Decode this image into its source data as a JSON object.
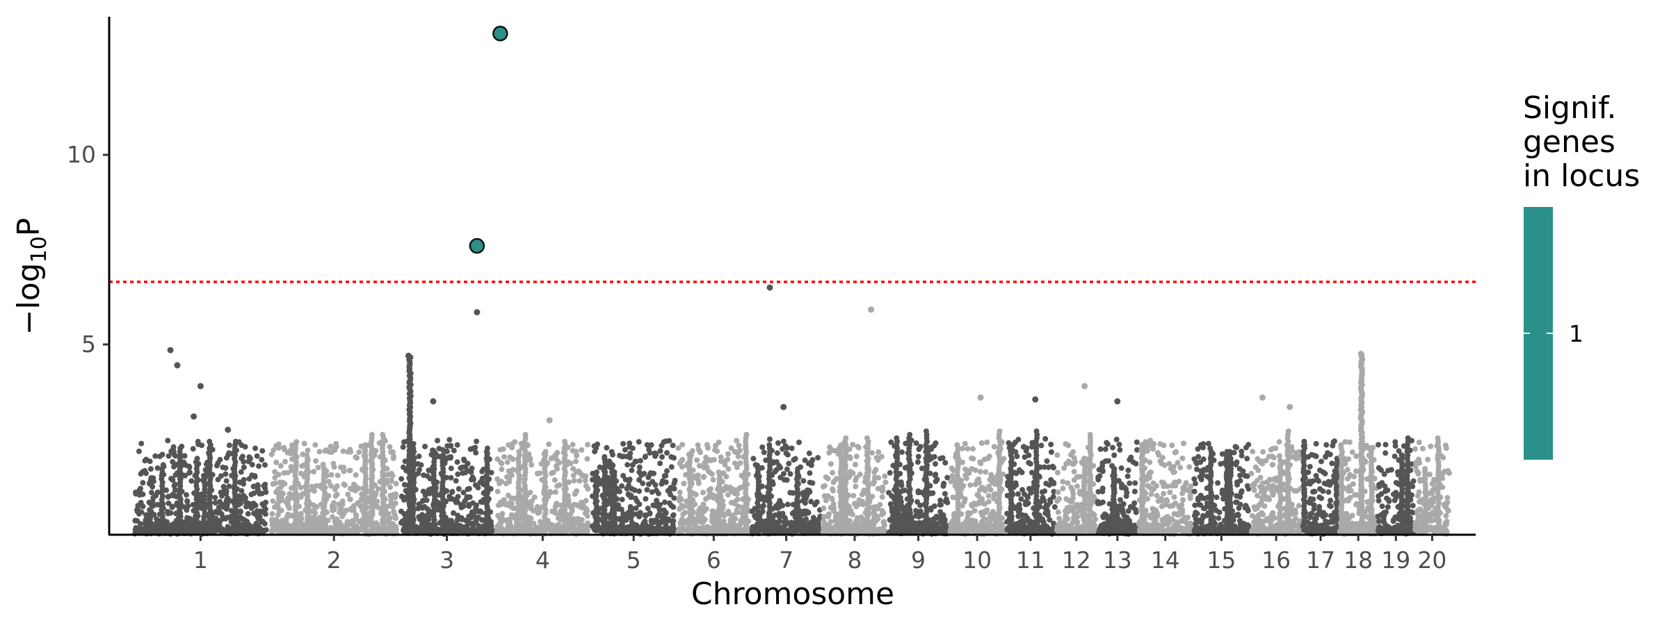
{
  "chart_data": {
    "type": "scatter",
    "title": "",
    "xlabel": "Chromosome",
    "ylabel": {
      "prefix": "−log",
      "subscript": "10",
      "suffix": "P"
    },
    "ylim": [
      0,
      13.7
    ],
    "yticks": [
      5,
      10
    ],
    "threshold": {
      "value": 6.65,
      "color": "#ff0000",
      "style": "dotted"
    },
    "colors": {
      "dark": "#555555",
      "light": "#a9a9a9",
      "significant": "#2a9089"
    },
    "chromosomes": [
      {
        "label": "1",
        "start": 0,
        "end": 1.0,
        "shade": "dark"
      },
      {
        "label": "2",
        "start": 1.0,
        "end": 1.95,
        "shade": "light"
      },
      {
        "label": "3",
        "start": 1.95,
        "end": 2.65,
        "shade": "dark"
      },
      {
        "label": "4",
        "start": 2.65,
        "end": 3.35,
        "shade": "light"
      },
      {
        "label": "5",
        "start": 3.35,
        "end": 3.98,
        "shade": "dark"
      },
      {
        "label": "6",
        "start": 3.98,
        "end": 4.52,
        "shade": "light"
      },
      {
        "label": "7",
        "start": 4.52,
        "end": 5.04,
        "shade": "dark"
      },
      {
        "label": "8",
        "start": 5.04,
        "end": 5.52,
        "shade": "light"
      },
      {
        "label": "9",
        "start": 5.52,
        "end": 5.97,
        "shade": "dark"
      },
      {
        "label": "10",
        "start": 5.97,
        "end": 6.38,
        "shade": "light"
      },
      {
        "label": "11",
        "start": 6.38,
        "end": 6.75,
        "shade": "dark"
      },
      {
        "label": "12",
        "start": 6.75,
        "end": 7.05,
        "shade": "light"
      },
      {
        "label": "13",
        "start": 7.05,
        "end": 7.35,
        "shade": "dark"
      },
      {
        "label": "14",
        "start": 7.35,
        "end": 7.75,
        "shade": "light"
      },
      {
        "label": "15",
        "start": 7.75,
        "end": 8.17,
        "shade": "dark"
      },
      {
        "label": "16",
        "start": 8.17,
        "end": 8.55,
        "shade": "light"
      },
      {
        "label": "17",
        "start": 8.55,
        "end": 8.82,
        "shade": "dark"
      },
      {
        "label": "18",
        "start": 8.82,
        "end": 9.1,
        "shade": "light"
      },
      {
        "label": "19",
        "start": 9.1,
        "end": 9.37,
        "shade": "dark"
      },
      {
        "label": "20",
        "start": 9.37,
        "end": 9.63,
        "shade": "light"
      }
    ],
    "peaks": [
      {
        "x": 0.28,
        "y": 4.85,
        "chr": 0
      },
      {
        "x": 0.33,
        "y": 4.45,
        "chr": 0
      },
      {
        "x": 0.5,
        "y": 3.9,
        "chr": 0
      },
      {
        "x": 0.45,
        "y": 3.1,
        "chr": 0
      },
      {
        "x": 0.7,
        "y": 2.75,
        "chr": 0
      },
      {
        "x": 2.02,
        "y": 4.7,
        "chr": 2
      },
      {
        "x": 2.2,
        "y": 3.5,
        "chr": 2
      },
      {
        "x": 2.52,
        "y": 5.85,
        "chr": 2
      },
      {
        "x": 3.05,
        "y": 3.0,
        "chr": 3
      },
      {
        "x": 4.66,
        "y": 6.5,
        "chr": 6
      },
      {
        "x": 4.76,
        "y": 3.35,
        "chr": 6
      },
      {
        "x": 5.4,
        "y": 5.92,
        "chr": 7
      },
      {
        "x": 6.2,
        "y": 3.6,
        "chr": 9
      },
      {
        "x": 6.6,
        "y": 3.55,
        "chr": 10
      },
      {
        "x": 6.96,
        "y": 3.9,
        "chr": 11
      },
      {
        "x": 7.2,
        "y": 3.5,
        "chr": 12
      },
      {
        "x": 8.26,
        "y": 3.6,
        "chr": 15
      },
      {
        "x": 8.46,
        "y": 3.35,
        "chr": 15
      },
      {
        "x": 8.98,
        "y": 4.75,
        "chr": 17
      }
    ],
    "significant_points": [
      {
        "x": 2.52,
        "y": 7.6
      },
      {
        "x": 2.69,
        "y": 13.2
      }
    ],
    "legend": {
      "title_lines": [
        "Signif.",
        "genes",
        "in locus"
      ],
      "tick_label": "1",
      "color": "#2a9089"
    }
  }
}
